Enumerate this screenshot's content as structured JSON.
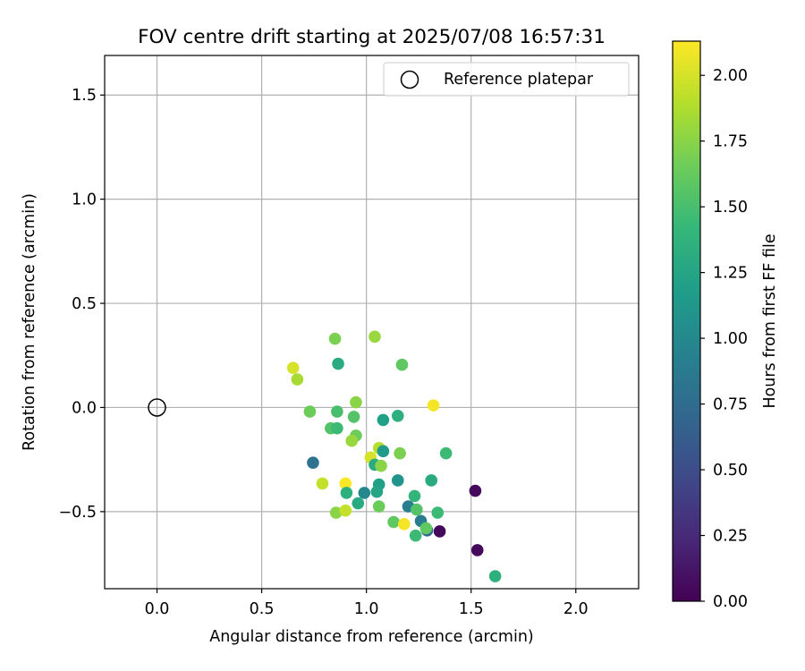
{
  "chart_data": {
    "type": "scatter",
    "title": "FOV centre drift starting at 2025/07/08 16:57:31",
    "xlabel": "Angular distance from reference (arcmin)",
    "ylabel": "Rotation from reference (arcmin)",
    "xlim": [
      -0.25,
      2.3
    ],
    "ylim": [
      -0.87,
      1.69
    ],
    "xticks": [
      0.0,
      0.5,
      1.0,
      1.5,
      2.0
    ],
    "xtick_labels": [
      "0.0",
      "0.5",
      "1.0",
      "1.5",
      "2.0"
    ],
    "yticks": [
      -0.5,
      0.0,
      0.5,
      1.0,
      1.5
    ],
    "ytick_labels": [
      "−0.5",
      "0.0",
      "0.5",
      "1.0",
      "1.5"
    ],
    "grid": true,
    "legend": {
      "placement": "top-right",
      "entries": [
        "Reference platepar"
      ]
    },
    "reference_point": {
      "x": 0.0,
      "y": 0.0
    },
    "colorbar": {
      "label": "Hours from first FF file",
      "colormap": "viridis",
      "range": [
        0.0,
        2.13
      ],
      "ticks": [
        0.0,
        0.25,
        0.5,
        0.75,
        1.0,
        1.25,
        1.5,
        1.75,
        2.0
      ],
      "tick_labels": [
        "0.00",
        "0.25",
        "0.50",
        "0.75",
        "1.00",
        "1.25",
        "1.50",
        "1.75",
        "2.00"
      ]
    },
    "points": [
      {
        "x": 0.85,
        "y": 0.33,
        "h": 1.7
      },
      {
        "x": 1.04,
        "y": 0.34,
        "h": 1.8
      },
      {
        "x": 0.65,
        "y": 0.19,
        "h": 2.0
      },
      {
        "x": 0.67,
        "y": 0.135,
        "h": 1.85
      },
      {
        "x": 0.865,
        "y": 0.21,
        "h": 1.3
      },
      {
        "x": 1.17,
        "y": 0.205,
        "h": 1.6
      },
      {
        "x": 0.73,
        "y": -0.02,
        "h": 1.65
      },
      {
        "x": 0.86,
        "y": -0.02,
        "h": 1.5
      },
      {
        "x": 0.95,
        "y": 0.025,
        "h": 1.75
      },
      {
        "x": 0.94,
        "y": -0.045,
        "h": 1.55
      },
      {
        "x": 1.08,
        "y": -0.06,
        "h": 1.2
      },
      {
        "x": 1.15,
        "y": -0.04,
        "h": 1.35
      },
      {
        "x": 1.32,
        "y": 0.01,
        "h": 2.1
      },
      {
        "x": 0.83,
        "y": -0.1,
        "h": 1.55
      },
      {
        "x": 0.86,
        "y": -0.1,
        "h": 1.45
      },
      {
        "x": 0.95,
        "y": -0.135,
        "h": 1.65
      },
      {
        "x": 0.93,
        "y": -0.16,
        "h": 1.8
      },
      {
        "x": 1.06,
        "y": -0.195,
        "h": 1.9
      },
      {
        "x": 1.08,
        "y": -0.21,
        "h": 1.15
      },
      {
        "x": 1.16,
        "y": -0.22,
        "h": 1.7
      },
      {
        "x": 1.38,
        "y": -0.22,
        "h": 1.45
      },
      {
        "x": 1.02,
        "y": -0.24,
        "h": 2.0
      },
      {
        "x": 1.04,
        "y": -0.275,
        "h": 1.3
      },
      {
        "x": 1.07,
        "y": -0.28,
        "h": 1.75
      },
      {
        "x": 0.745,
        "y": -0.265,
        "h": 0.8
      },
      {
        "x": 0.79,
        "y": -0.365,
        "h": 1.95
      },
      {
        "x": 0.9,
        "y": -0.365,
        "h": 2.12
      },
      {
        "x": 1.06,
        "y": -0.37,
        "h": 1.2
      },
      {
        "x": 1.15,
        "y": -0.35,
        "h": 1.1
      },
      {
        "x": 1.31,
        "y": -0.35,
        "h": 1.3
      },
      {
        "x": 0.905,
        "y": -0.41,
        "h": 1.35
      },
      {
        "x": 0.99,
        "y": -0.41,
        "h": 1.0
      },
      {
        "x": 1.05,
        "y": -0.405,
        "h": 1.25
      },
      {
        "x": 1.23,
        "y": -0.425,
        "h": 1.4
      },
      {
        "x": 1.52,
        "y": -0.4,
        "h": 0.05
      },
      {
        "x": 0.96,
        "y": -0.46,
        "h": 1.3
      },
      {
        "x": 1.06,
        "y": -0.475,
        "h": 1.65
      },
      {
        "x": 1.2,
        "y": -0.475,
        "h": 0.9
      },
      {
        "x": 1.24,
        "y": -0.49,
        "h": 1.55
      },
      {
        "x": 0.855,
        "y": -0.505,
        "h": 1.75
      },
      {
        "x": 0.9,
        "y": -0.495,
        "h": 1.95
      },
      {
        "x": 1.34,
        "y": -0.505,
        "h": 1.45
      },
      {
        "x": 1.13,
        "y": -0.55,
        "h": 1.6
      },
      {
        "x": 1.18,
        "y": -0.56,
        "h": 2.1
      },
      {
        "x": 1.26,
        "y": -0.545,
        "h": 0.9
      },
      {
        "x": 1.29,
        "y": -0.59,
        "h": 0.7
      },
      {
        "x": 1.285,
        "y": -0.58,
        "h": 1.6
      },
      {
        "x": 1.35,
        "y": -0.595,
        "h": 0.05
      },
      {
        "x": 1.235,
        "y": -0.615,
        "h": 1.45
      },
      {
        "x": 1.53,
        "y": -0.685,
        "h": 0.05
      },
      {
        "x": 1.615,
        "y": -0.81,
        "h": 1.35
      }
    ]
  }
}
